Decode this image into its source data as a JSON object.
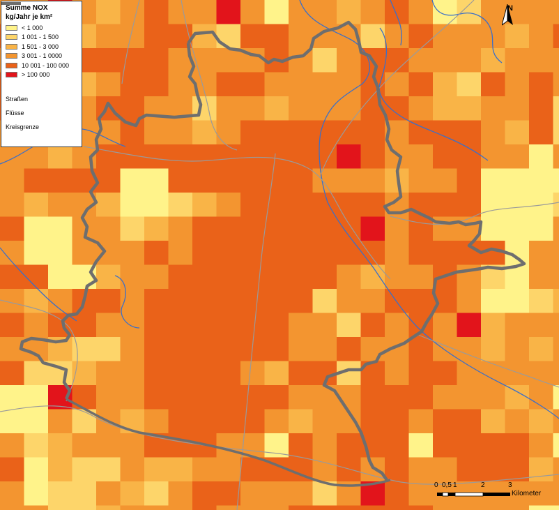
{
  "map": {
    "palette": {
      "c1": "#fff38a",
      "c2": "#fdd56a",
      "c3": "#f9b447",
      "c4": "#f39530",
      "c5": "#ea6219",
      "c6": "#e2141b"
    },
    "river_color": "#3b6fc8",
    "road_color": "#9a9a9a",
    "boundary_color": "#6e6e6e"
  },
  "legend": {
    "title": "Summe NOX",
    "subtitle": "kg/Jahr je km²",
    "classes": [
      {
        "label": "< 1 000",
        "color": "#fff38a"
      },
      {
        "label": "1 001 - 1 500",
        "color": "#fdd56a"
      },
      {
        "label": "1 501 - 3 000",
        "color": "#f9b447"
      },
      {
        "label": "3 001 - 1 0000",
        "color": "#f39530"
      },
      {
        "label": "10 001 - 100 000",
        "color": "#ea6219"
      },
      {
        "label": "> 100 000",
        "color": "#e2141b"
      }
    ],
    "lines": [
      {
        "label": "Straßen",
        "color": "#000000"
      },
      {
        "label": "Flüsse",
        "color": "#1f5fc8"
      },
      {
        "label": "Kreisgrenze",
        "color": "#6e6e6e"
      }
    ]
  },
  "north_arrow": {
    "label": "N"
  },
  "scale_bar": {
    "ticks": [
      "0",
      "0,5",
      "1",
      "2",
      "3"
    ],
    "unit": "Kilometer"
  }
}
